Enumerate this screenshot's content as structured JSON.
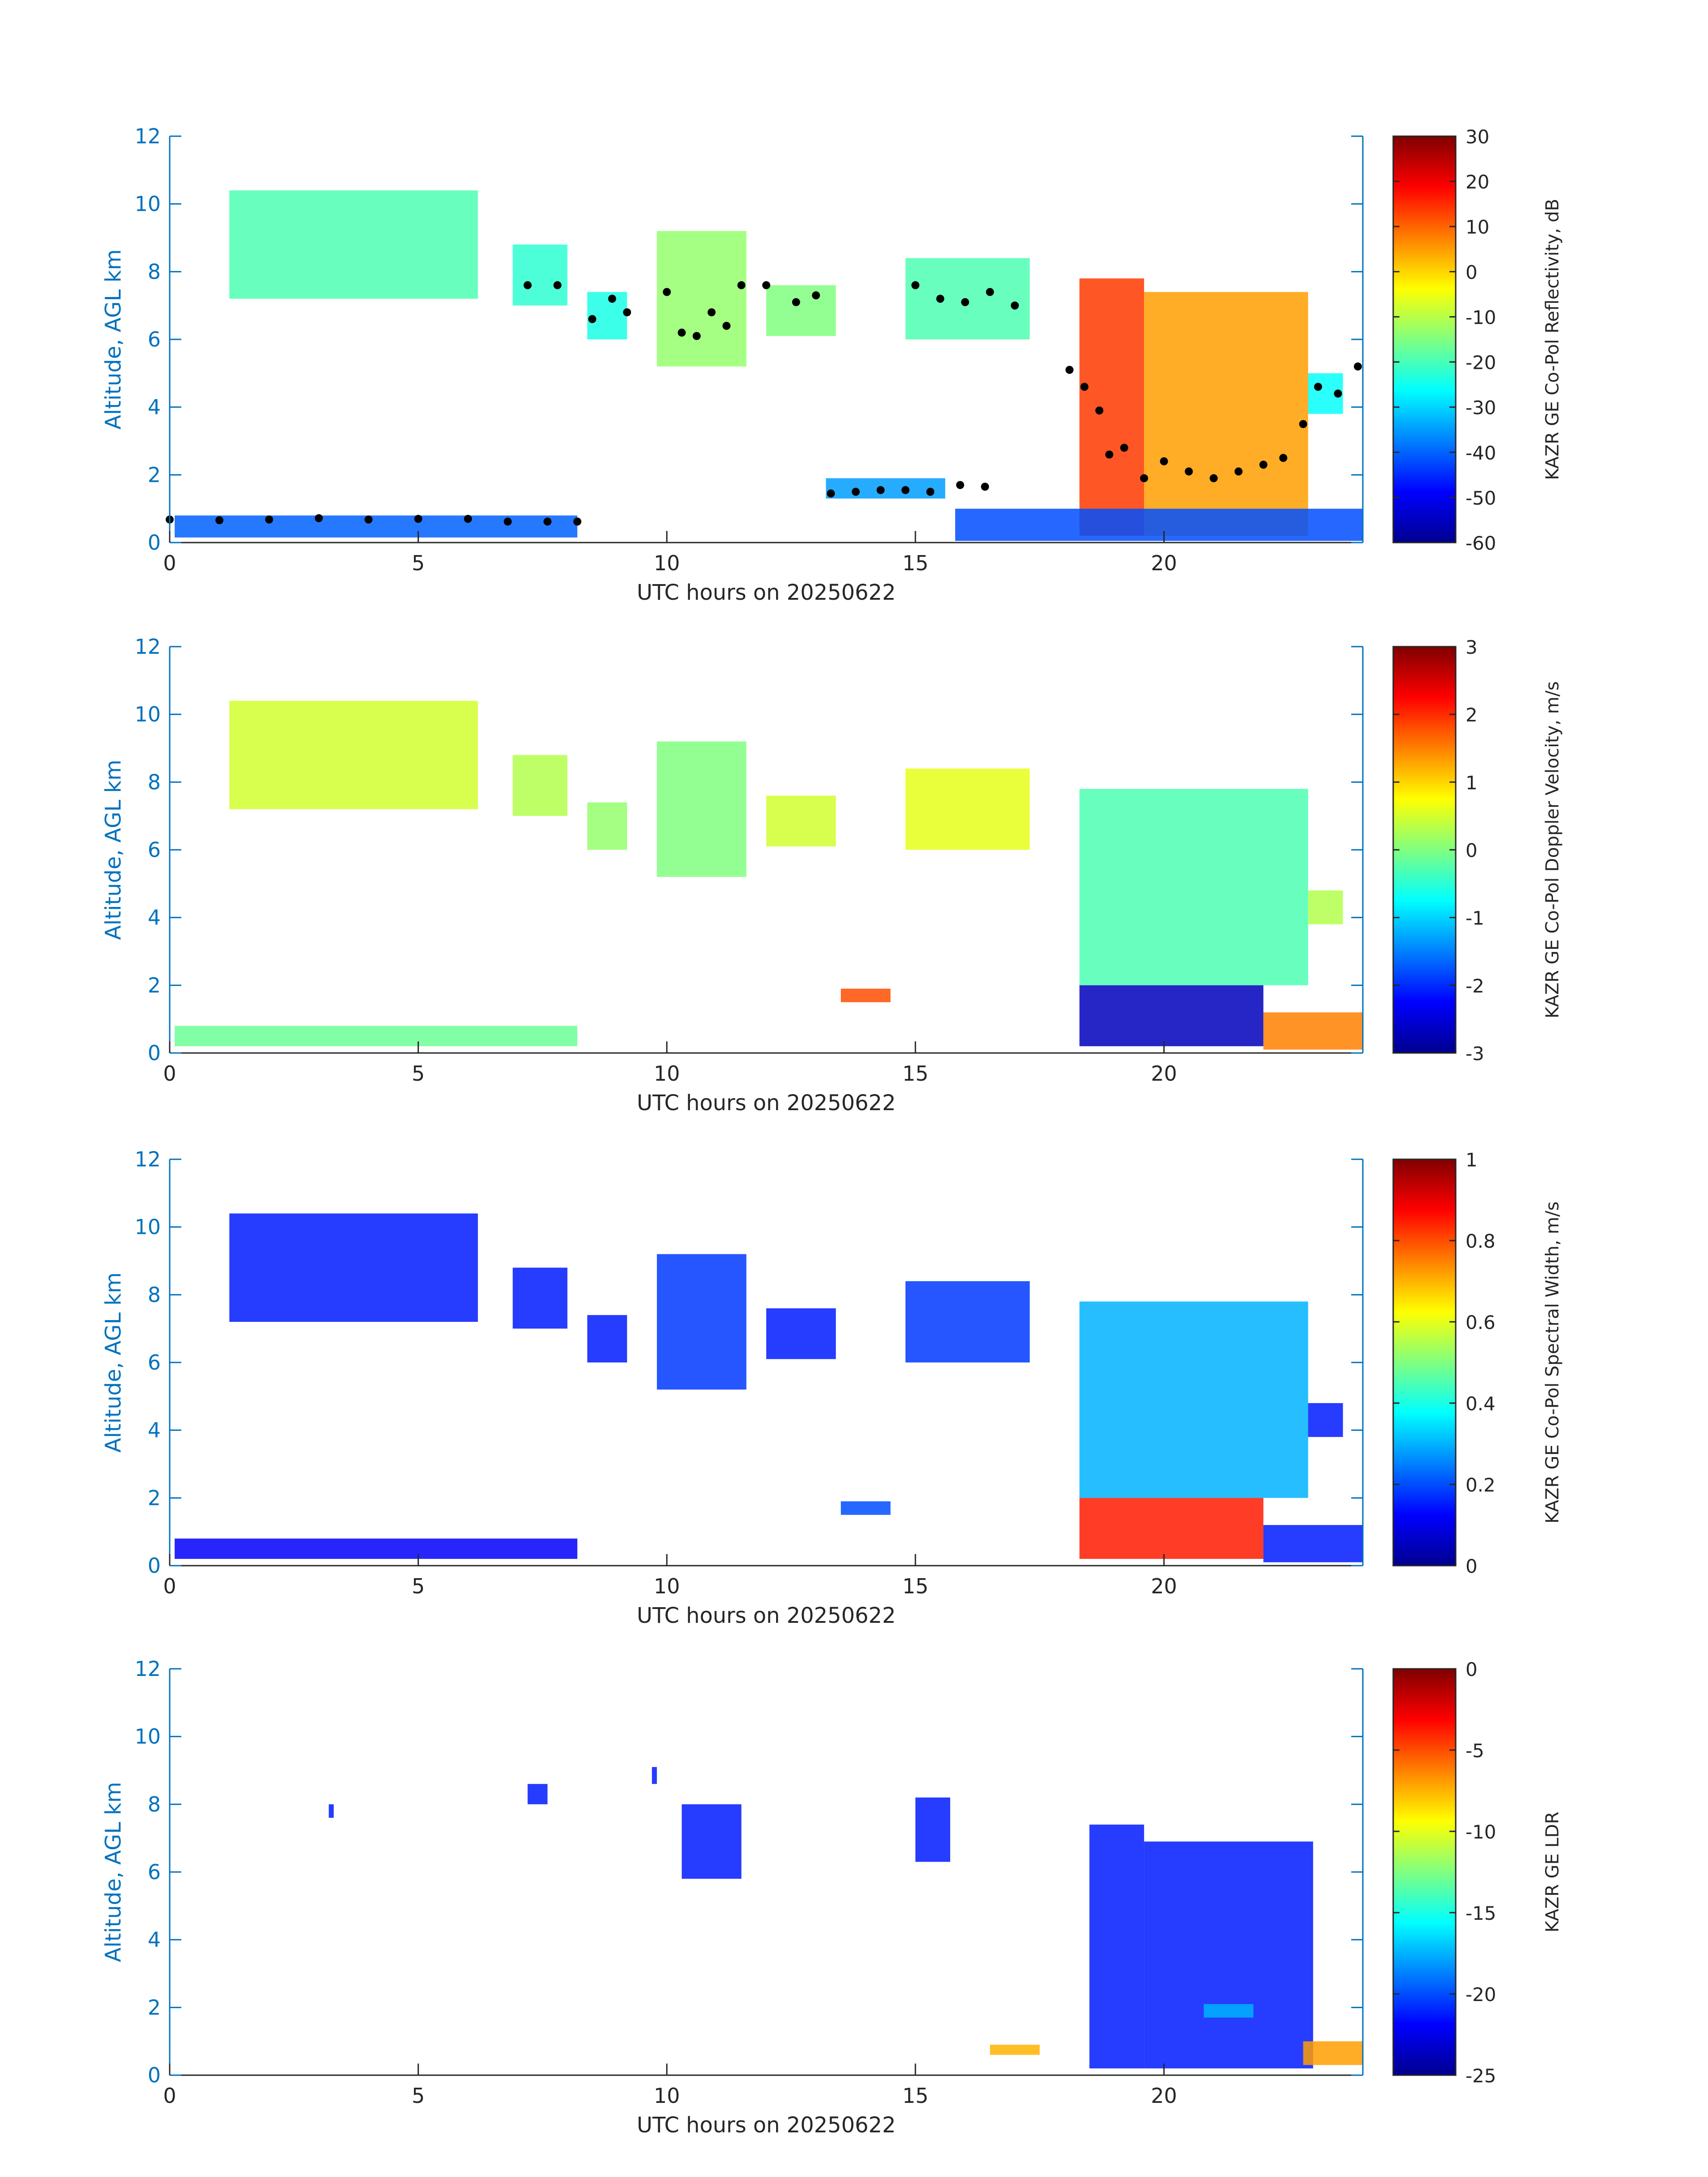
{
  "figure": {
    "colors": {
      "axis_blue": "#0072BD",
      "text_dark": "#262626",
      "background": "#ffffff"
    },
    "colormap": [
      "#00008F",
      "#0000FF",
      "#0080FF",
      "#00FFFF",
      "#80FF80",
      "#FFFF00",
      "#FF8000",
      "#FF0000",
      "#800000"
    ]
  },
  "chart_data": [
    {
      "type": "heatmap",
      "title": "",
      "xlabel": "UTC hours on 20250622",
      "ylabel": "Altitude, AGL km",
      "xlim": [
        0,
        24
      ],
      "ylim": [
        0,
        12
      ],
      "xticks": [
        0,
        5,
        10,
        15,
        20
      ],
      "yticks": [
        0,
        2,
        4,
        6,
        8,
        10,
        12
      ],
      "colorbar": {
        "label": "KAZR GE Co-Pol Reflectivity, dB",
        "range": [
          -60,
          30
        ],
        "ticks": [
          -60,
          -50,
          -40,
          -30,
          -20,
          -10,
          0,
          10,
          20,
          30
        ]
      },
      "echoes": [
        {
          "t0": 1.2,
          "t1": 6.2,
          "z0": 7.2,
          "z1": 10.4,
          "v": 0.45
        },
        {
          "t0": 6.9,
          "t1": 8.0,
          "z0": 7.0,
          "z1": 8.8,
          "v": 0.42
        },
        {
          "t0": 8.4,
          "t1": 9.2,
          "z0": 6.0,
          "z1": 7.4,
          "v": 0.4
        },
        {
          "t0": 9.8,
          "t1": 11.6,
          "z0": 5.2,
          "z1": 9.2,
          "v": 0.52
        },
        {
          "t0": 12.0,
          "t1": 13.4,
          "z0": 6.1,
          "z1": 7.6,
          "v": 0.5
        },
        {
          "t0": 14.8,
          "t1": 17.3,
          "z0": 6.0,
          "z1": 8.4,
          "v": 0.45
        },
        {
          "t0": 18.3,
          "t1": 19.6,
          "z0": 0.2,
          "z1": 7.8,
          "v": 0.82
        },
        {
          "t0": 19.6,
          "t1": 22.9,
          "z0": 0.2,
          "z1": 7.4,
          "v": 0.72
        },
        {
          "t0": 22.9,
          "t1": 23.6,
          "z0": 3.8,
          "z1": 5.0,
          "v": 0.38
        },
        {
          "t0": 0.1,
          "t1": 8.2,
          "z0": 0.15,
          "z1": 0.8,
          "v": 0.22
        },
        {
          "t0": 13.2,
          "t1": 15.6,
          "z0": 1.3,
          "z1": 1.9,
          "v": 0.28
        },
        {
          "t0": 15.8,
          "t1": 24.0,
          "z0": 0.05,
          "z1": 1.0,
          "v": 0.2
        }
      ],
      "cloud_base_points": [
        {
          "t": 0.0,
          "z": 0.68
        },
        {
          "t": 1.0,
          "z": 0.66
        },
        {
          "t": 2.0,
          "z": 0.68
        },
        {
          "t": 3.0,
          "z": 0.72
        },
        {
          "t": 4.0,
          "z": 0.68
        },
        {
          "t": 5.0,
          "z": 0.7
        },
        {
          "t": 6.0,
          "z": 0.7
        },
        {
          "t": 6.8,
          "z": 0.62
        },
        {
          "t": 7.6,
          "z": 0.62
        },
        {
          "t": 8.2,
          "z": 0.62
        },
        {
          "t": 7.2,
          "z": 7.6
        },
        {
          "t": 7.8,
          "z": 7.6
        },
        {
          "t": 8.5,
          "z": 6.6
        },
        {
          "t": 8.9,
          "z": 7.2
        },
        {
          "t": 9.2,
          "z": 6.8
        },
        {
          "t": 10.0,
          "z": 7.4
        },
        {
          "t": 10.3,
          "z": 6.2
        },
        {
          "t": 10.6,
          "z": 6.1
        },
        {
          "t": 10.9,
          "z": 6.8
        },
        {
          "t": 11.2,
          "z": 6.4
        },
        {
          "t": 11.5,
          "z": 7.6
        },
        {
          "t": 12.0,
          "z": 7.6
        },
        {
          "t": 12.6,
          "z": 7.1
        },
        {
          "t": 13.0,
          "z": 7.3
        },
        {
          "t": 13.3,
          "z": 1.45
        },
        {
          "t": 13.8,
          "z": 1.5
        },
        {
          "t": 14.3,
          "z": 1.55
        },
        {
          "t": 14.8,
          "z": 1.55
        },
        {
          "t": 15.3,
          "z": 1.5
        },
        {
          "t": 15.9,
          "z": 1.7
        },
        {
          "t": 16.4,
          "z": 1.65
        },
        {
          "t": 15.0,
          "z": 7.6
        },
        {
          "t": 15.5,
          "z": 7.2
        },
        {
          "t": 16.0,
          "z": 7.1
        },
        {
          "t": 16.5,
          "z": 7.4
        },
        {
          "t": 17.0,
          "z": 7.0
        },
        {
          "t": 18.1,
          "z": 5.1
        },
        {
          "t": 18.4,
          "z": 4.6
        },
        {
          "t": 18.7,
          "z": 3.9
        },
        {
          "t": 18.9,
          "z": 2.6
        },
        {
          "t": 19.2,
          "z": 2.8
        },
        {
          "t": 19.6,
          "z": 1.9
        },
        {
          "t": 20.0,
          "z": 2.4
        },
        {
          "t": 20.5,
          "z": 2.1
        },
        {
          "t": 21.0,
          "z": 1.9
        },
        {
          "t": 21.5,
          "z": 2.1
        },
        {
          "t": 22.0,
          "z": 2.3
        },
        {
          "t": 22.4,
          "z": 2.5
        },
        {
          "t": 22.8,
          "z": 3.5
        },
        {
          "t": 23.1,
          "z": 4.6
        },
        {
          "t": 23.5,
          "z": 4.4
        },
        {
          "t": 23.9,
          "z": 5.2
        }
      ]
    },
    {
      "type": "heatmap",
      "title": "",
      "xlabel": "UTC hours on 20250622",
      "ylabel": "Altitude, AGL km",
      "xlim": [
        0,
        24
      ],
      "ylim": [
        0,
        12
      ],
      "xticks": [
        0,
        5,
        10,
        15,
        20
      ],
      "yticks": [
        0,
        2,
        4,
        6,
        8,
        10,
        12
      ],
      "colorbar": {
        "label": "KAZR GE Co-Pol Doppler Velocity, m/s",
        "range": [
          -3,
          3
        ],
        "ticks": [
          -3,
          -2,
          -1,
          0,
          1,
          2,
          3
        ]
      },
      "echoes": [
        {
          "t0": 1.2,
          "t1": 6.2,
          "z0": 7.2,
          "z1": 10.4,
          "v": 0.58
        },
        {
          "t0": 6.9,
          "t1": 8.0,
          "z0": 7.0,
          "z1": 8.8,
          "v": 0.55
        },
        {
          "t0": 8.4,
          "t1": 9.2,
          "z0": 6.0,
          "z1": 7.4,
          "v": 0.52
        },
        {
          "t0": 9.8,
          "t1": 11.6,
          "z0": 5.2,
          "z1": 9.2,
          "v": 0.5
        },
        {
          "t0": 12.0,
          "t1": 13.4,
          "z0": 6.1,
          "z1": 7.6,
          "v": 0.58
        },
        {
          "t0": 14.8,
          "t1": 17.3,
          "z0": 6.0,
          "z1": 8.4,
          "v": 0.6
        },
        {
          "t0": 18.3,
          "t1": 22.9,
          "z0": 2.0,
          "z1": 7.8,
          "v": 0.45
        },
        {
          "t0": 18.3,
          "t1": 22.0,
          "z0": 0.2,
          "z1": 2.0,
          "v": 0.05
        },
        {
          "t0": 22.9,
          "t1": 23.6,
          "z0": 3.8,
          "z1": 4.8,
          "v": 0.55
        },
        {
          "t0": 0.1,
          "t1": 8.2,
          "z0": 0.2,
          "z1": 0.8,
          "v": 0.48
        },
        {
          "t0": 13.5,
          "t1": 14.5,
          "z0": 1.5,
          "z1": 1.9,
          "v": 0.8
        },
        {
          "t0": 22.0,
          "t1": 24.0,
          "z0": 0.1,
          "z1": 1.2,
          "v": 0.75
        }
      ]
    },
    {
      "type": "heatmap",
      "title": "",
      "xlabel": "UTC hours on 20250622",
      "ylabel": "Altitude, AGL km",
      "xlim": [
        0,
        24
      ],
      "ylim": [
        0,
        12
      ],
      "xticks": [
        0,
        5,
        10,
        15,
        20
      ],
      "yticks": [
        0,
        2,
        4,
        6,
        8,
        10,
        12
      ],
      "colorbar": {
        "label": "KAZR GE Co-Pol Spectral Width, m/s",
        "range": [
          0,
          1
        ],
        "ticks": [
          0,
          0.2,
          0.4,
          0.6,
          0.8,
          1
        ]
      },
      "echoes": [
        {
          "t0": 1.2,
          "t1": 6.2,
          "z0": 7.2,
          "z1": 10.4,
          "v": 0.15
        },
        {
          "t0": 6.9,
          "t1": 8.0,
          "z0": 7.0,
          "z1": 8.8,
          "v": 0.15
        },
        {
          "t0": 8.4,
          "t1": 9.2,
          "z0": 6.0,
          "z1": 7.4,
          "v": 0.15
        },
        {
          "t0": 9.8,
          "t1": 11.6,
          "z0": 5.2,
          "z1": 9.2,
          "v": 0.18
        },
        {
          "t0": 12.0,
          "t1": 13.4,
          "z0": 6.1,
          "z1": 7.6,
          "v": 0.15
        },
        {
          "t0": 14.8,
          "t1": 17.3,
          "z0": 6.0,
          "z1": 8.4,
          "v": 0.18
        },
        {
          "t0": 18.3,
          "t1": 22.9,
          "z0": 2.0,
          "z1": 7.8,
          "v": 0.3
        },
        {
          "t0": 18.3,
          "t1": 22.0,
          "z0": 0.2,
          "z1": 2.0,
          "v": 0.85
        },
        {
          "t0": 22.9,
          "t1": 23.6,
          "z0": 3.8,
          "z1": 4.8,
          "v": 0.15
        },
        {
          "t0": 0.1,
          "t1": 8.2,
          "z0": 0.2,
          "z1": 0.8,
          "v": 0.12
        },
        {
          "t0": 13.5,
          "t1": 14.5,
          "z0": 1.5,
          "z1": 1.9,
          "v": 0.2
        },
        {
          "t0": 22.0,
          "t1": 24.0,
          "z0": 0.1,
          "z1": 1.2,
          "v": 0.15
        }
      ]
    },
    {
      "type": "heatmap",
      "title": "",
      "xlabel": "UTC hours on 20250622",
      "ylabel": "Altitude, AGL km",
      "xlim": [
        0,
        24
      ],
      "ylim": [
        0,
        12
      ],
      "xticks": [
        0,
        5,
        10,
        15,
        20
      ],
      "yticks": [
        0,
        2,
        4,
        6,
        8,
        10,
        12
      ],
      "colorbar": {
        "label": "KAZR GE LDR",
        "range": [
          -25,
          0
        ],
        "ticks": [
          -25,
          -20,
          -15,
          -10,
          -5,
          0
        ]
      },
      "echoes": [
        {
          "t0": 3.2,
          "t1": 3.3,
          "z0": 7.6,
          "z1": 8.0,
          "v": 0.15
        },
        {
          "t0": 7.2,
          "t1": 7.6,
          "z0": 8.0,
          "z1": 8.6,
          "v": 0.15
        },
        {
          "t0": 9.7,
          "t1": 9.8,
          "z0": 8.6,
          "z1": 9.1,
          "v": 0.15
        },
        {
          "t0": 10.3,
          "t1": 11.5,
          "z0": 5.8,
          "z1": 8.0,
          "v": 0.15
        },
        {
          "t0": 15.0,
          "t1": 15.7,
          "z0": 6.3,
          "z1": 8.2,
          "v": 0.15
        },
        {
          "t0": 18.5,
          "t1": 19.6,
          "z0": 0.2,
          "z1": 7.4,
          "v": 0.15
        },
        {
          "t0": 19.6,
          "t1": 23.0,
          "z0": 0.2,
          "z1": 6.9,
          "v": 0.15
        },
        {
          "t0": 20.8,
          "t1": 21.8,
          "z0": 1.7,
          "z1": 2.1,
          "v": 0.3
        },
        {
          "t0": 16.5,
          "t1": 17.5,
          "z0": 0.6,
          "z1": 0.9,
          "v": 0.7
        },
        {
          "t0": 22.8,
          "t1": 24.0,
          "z0": 0.3,
          "z1": 1.0,
          "v": 0.72
        }
      ]
    }
  ]
}
